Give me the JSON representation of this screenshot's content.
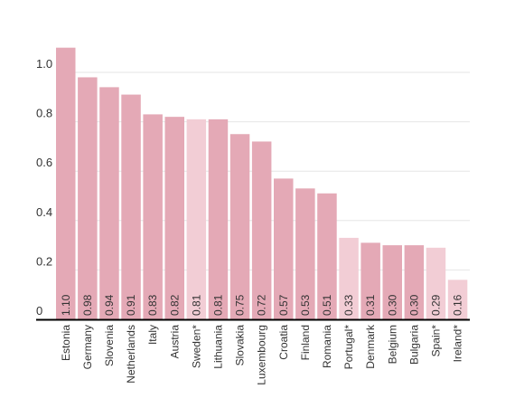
{
  "chart_data": {
    "type": "bar",
    "categories": [
      "Estonia",
      "Germany",
      "Slovenia",
      "Netherlands",
      "Italy",
      "Austria",
      "Sweden*",
      "Lithuania",
      "Slovakia",
      "Luxembourg",
      "Croatia",
      "Finland",
      "Romania",
      "Portugal*",
      "Denmark",
      "Belgium",
      "Bulgaria",
      "Spain*",
      "Ireland*"
    ],
    "values": [
      1.1,
      0.98,
      0.94,
      0.91,
      0.83,
      0.82,
      0.81,
      0.81,
      0.75,
      0.72,
      0.57,
      0.53,
      0.51,
      0.33,
      0.31,
      0.3,
      0.3,
      0.29,
      0.16
    ],
    "value_labels": [
      "1.10",
      "0.98",
      "0.94",
      "0.91",
      "0.83",
      "0.82",
      "0.81",
      "0.81",
      "0.75",
      "0.72",
      "0.57",
      "0.53",
      "0.51",
      "0.33",
      "0.31",
      "0.30",
      "0.30",
      "0.29",
      "0.16"
    ],
    "highlighted": [
      false,
      false,
      false,
      false,
      false,
      false,
      true,
      false,
      false,
      false,
      false,
      false,
      false,
      true,
      false,
      false,
      false,
      true,
      true
    ],
    "yticks": [
      {
        "value": 0,
        "label": "0"
      },
      {
        "value": 0.2,
        "label": "0.2"
      },
      {
        "value": 0.4,
        "label": "0.4"
      },
      {
        "value": 0.6,
        "label": "0.6"
      },
      {
        "value": 0.8,
        "label": "0.8"
      },
      {
        "value": 1.0,
        "label": "1.0"
      }
    ],
    "ylim": [
      0,
      1.1
    ],
    "grid": true,
    "title": "",
    "xlabel": "",
    "ylabel": "",
    "colors": {
      "bar": "#e4a9b6",
      "bar_light": "#f2cdd5",
      "axis": "#000000",
      "grid": "#e6e6e6"
    }
  }
}
